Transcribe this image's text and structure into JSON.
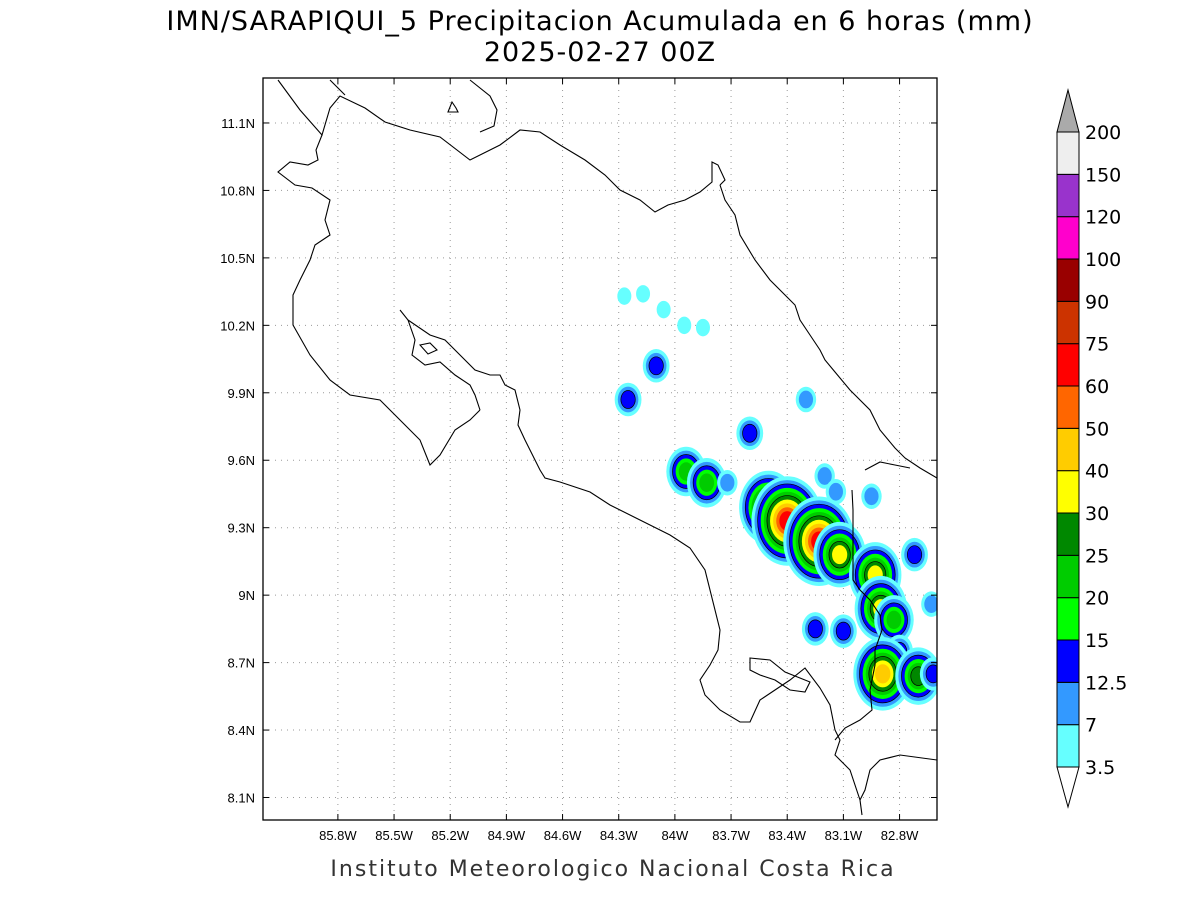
{
  "title": {
    "line1": "IMN/SARAPIQUI_5 Precipitacion Acumulada en 6 horas (mm)",
    "line2": "2025-02-27 00Z"
  },
  "footer": "Instituto Meteorologico Nacional Costa Rica",
  "map": {
    "lon_range": [
      -86.2,
      -82.6
    ],
    "lat_range": [
      8.0,
      11.3
    ],
    "x_ticks": [
      {
        "value": -85.8,
        "label": "85.8W"
      },
      {
        "value": -85.5,
        "label": "85.5W"
      },
      {
        "value": -85.2,
        "label": "85.2W"
      },
      {
        "value": -84.9,
        "label": "84.9W"
      },
      {
        "value": -84.6,
        "label": "84.6W"
      },
      {
        "value": -84.3,
        "label": "84.3W"
      },
      {
        "value": -84.0,
        "label": "84W"
      },
      {
        "value": -83.7,
        "label": "83.7W"
      },
      {
        "value": -83.4,
        "label": "83.4W"
      },
      {
        "value": -83.1,
        "label": "83.1W"
      },
      {
        "value": -82.8,
        "label": "82.8W"
      }
    ],
    "y_ticks": [
      {
        "value": 11.1,
        "label": "11.1N"
      },
      {
        "value": 10.8,
        "label": "10.8N"
      },
      {
        "value": 10.5,
        "label": "10.5N"
      },
      {
        "value": 10.2,
        "label": "10.2N"
      },
      {
        "value": 9.9,
        "label": "9.9N"
      },
      {
        "value": 9.6,
        "label": "9.6N"
      },
      {
        "value": 9.3,
        "label": "9.3N"
      },
      {
        "value": 9.0,
        "label": "9N"
      },
      {
        "value": 8.7,
        "label": "8.7N"
      },
      {
        "value": 8.4,
        "label": "8.4N"
      },
      {
        "value": 8.1,
        "label": "8.1N"
      }
    ],
    "grid": true
  },
  "legend": {
    "levels": [
      {
        "label": "3.5",
        "color": "#66ffff"
      },
      {
        "label": "7",
        "color": "#3399ff"
      },
      {
        "label": "12.5",
        "color": "#0000ff"
      },
      {
        "label": "15",
        "color": "#00ff00"
      },
      {
        "label": "20",
        "color": "#00cc00"
      },
      {
        "label": "25",
        "color": "#008800"
      },
      {
        "label": "30",
        "color": "#ffff00"
      },
      {
        "label": "40",
        "color": "#ffcc00"
      },
      {
        "label": "50",
        "color": "#ff6600"
      },
      {
        "label": "60",
        "color": "#ff0000"
      },
      {
        "label": "75",
        "color": "#cc3300"
      },
      {
        "label": "90",
        "color": "#990000"
      },
      {
        "label": "100",
        "color": "#ff00cc"
      },
      {
        "label": "120",
        "color": "#9933cc"
      },
      {
        "label": "150",
        "color": "#eeeeee"
      },
      {
        "label": "200",
        "color": "#aaaaaa"
      }
    ]
  },
  "precip_cells": [
    {
      "lon": -84.27,
      "lat": 10.33,
      "level": 0
    },
    {
      "lon": -84.17,
      "lat": 10.34,
      "level": 0
    },
    {
      "lon": -84.06,
      "lat": 10.27,
      "level": 0
    },
    {
      "lon": -83.95,
      "lat": 10.2,
      "level": 0
    },
    {
      "lon": -83.85,
      "lat": 10.19,
      "level": 0
    },
    {
      "lon": -84.1,
      "lat": 10.02,
      "level": 2
    },
    {
      "lon": -84.25,
      "lat": 9.87,
      "level": 2
    },
    {
      "lon": -83.6,
      "lat": 9.72,
      "level": 2
    },
    {
      "lon": -83.3,
      "lat": 9.87,
      "level": 1
    },
    {
      "lon": -83.94,
      "lat": 9.55,
      "level": 4
    },
    {
      "lon": -83.83,
      "lat": 9.5,
      "level": 4
    },
    {
      "lon": -83.72,
      "lat": 9.5,
      "level": 1
    },
    {
      "lon": -83.52,
      "lat": 9.47,
      "level": 1
    },
    {
      "lon": -83.5,
      "lat": 9.39,
      "level": 7
    },
    {
      "lon": -83.4,
      "lat": 9.33,
      "level": 9
    },
    {
      "lon": -83.23,
      "lat": 9.24,
      "level": 9
    },
    {
      "lon": -83.12,
      "lat": 9.18,
      "level": 6
    },
    {
      "lon": -83.2,
      "lat": 9.53,
      "level": 1
    },
    {
      "lon": -83.14,
      "lat": 9.46,
      "level": 1
    },
    {
      "lon": -82.95,
      "lat": 9.44,
      "level": 1
    },
    {
      "lon": -82.93,
      "lat": 9.09,
      "level": 6
    },
    {
      "lon": -82.9,
      "lat": 8.94,
      "level": 6
    },
    {
      "lon": -83.25,
      "lat": 8.85,
      "level": 2
    },
    {
      "lon": -83.1,
      "lat": 8.84,
      "level": 2
    },
    {
      "lon": -82.83,
      "lat": 8.89,
      "level": 4
    },
    {
      "lon": -82.8,
      "lat": 8.75,
      "level": 2
    },
    {
      "lon": -82.89,
      "lat": 8.65,
      "level": 7
    },
    {
      "lon": -82.7,
      "lat": 8.64,
      "level": 5
    },
    {
      "lon": -82.72,
      "lat": 9.18,
      "level": 2
    },
    {
      "lon": -82.63,
      "lat": 8.96,
      "level": 1
    },
    {
      "lon": -82.62,
      "lat": 8.65,
      "level": 2
    }
  ]
}
